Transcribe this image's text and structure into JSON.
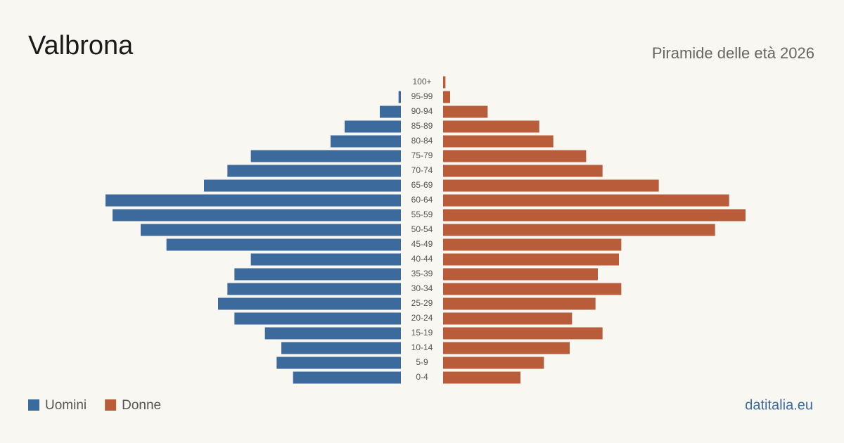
{
  "chart_data": {
    "type": "pyramid",
    "title": "Valbrona",
    "subtitle": "Piramide delle età 2026",
    "source": "datitalia.eu",
    "categories": [
      "100+",
      "95-99",
      "90-94",
      "85-89",
      "80-84",
      "75-79",
      "70-74",
      "65-69",
      "60-64",
      "55-59",
      "50-54",
      "45-49",
      "40-44",
      "35-39",
      "30-34",
      "25-29",
      "20-24",
      "15-19",
      "10-14",
      "5-9",
      "0-4"
    ],
    "series": [
      {
        "name": "Uomini",
        "color": "#3d6a9c",
        "values": [
          0,
          1,
          9,
          24,
          30,
          64,
          74,
          84,
          126,
          123,
          111,
          100,
          64,
          71,
          74,
          78,
          71,
          58,
          51,
          53,
          46
        ]
      },
      {
        "name": "Donne",
        "color": "#b95c3a",
        "values": [
          1,
          3,
          19,
          41,
          47,
          61,
          68,
          92,
          122,
          129,
          116,
          76,
          75,
          66,
          76,
          65,
          55,
          68,
          54,
          43,
          33
        ]
      }
    ]
  }
}
